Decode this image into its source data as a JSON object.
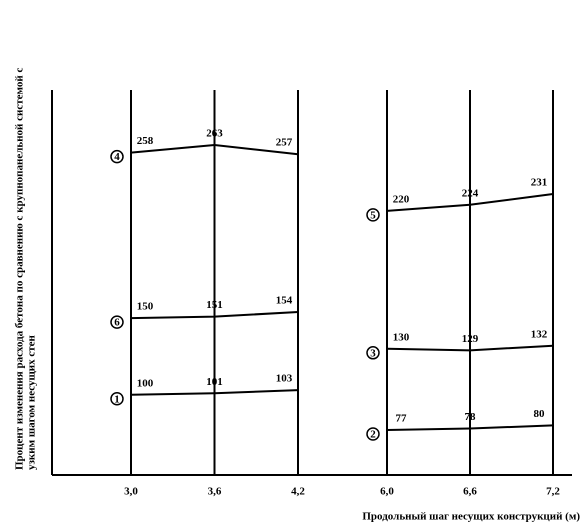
{
  "chart_data": [
    {
      "type": "line",
      "ylabel": [
        "Процент изменения расхода бетона по сравнению с крупнопанельной системой с",
        "узким шагом несущих стен"
      ],
      "x": [
        3.0,
        3.6,
        4.2
      ],
      "xticks": [
        {
          "value": 3.0,
          "label": "3,0"
        },
        {
          "value": 3.6,
          "label": "3,6"
        },
        {
          "value": 4.2,
          "label": "4,2"
        }
      ],
      "color": "#000000",
      "series": [
        {
          "name": "4",
          "values": [
            258,
            263,
            257
          ]
        },
        {
          "name": "6",
          "values": [
            150,
            151,
            154
          ]
        },
        {
          "name": "1",
          "values": [
            100,
            101,
            103
          ]
        }
      ]
    },
    {
      "type": "line",
      "xlabel": "Продольный шаг несущих конструкций (м)",
      "x": [
        6.0,
        6.6,
        7.2
      ],
      "xticks": [
        {
          "value": 6.0,
          "label": "6,0"
        },
        {
          "value": 6.6,
          "label": "6,6"
        },
        {
          "value": 7.2,
          "label": "7,2"
        }
      ],
      "color": "#000000",
      "series": [
        {
          "name": "5",
          "values": [
            220,
            224,
            231
          ]
        },
        {
          "name": "3",
          "values": [
            130,
            129,
            132
          ]
        },
        {
          "name": "2",
          "values": [
            77,
            78,
            80
          ]
        }
      ]
    }
  ]
}
